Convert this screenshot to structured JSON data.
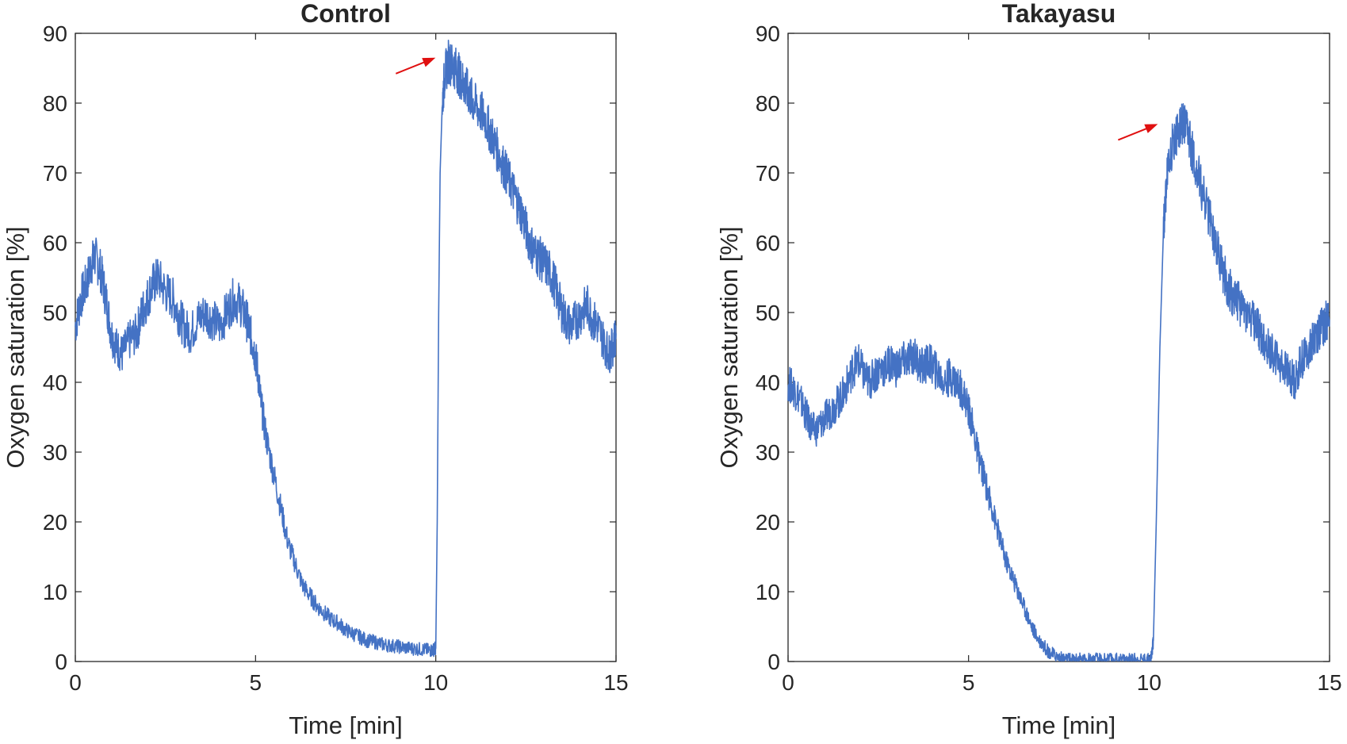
{
  "colors": {
    "line": "#4472c4",
    "arrow": "#e01010",
    "axis": "#262626",
    "background": "#ffffff"
  },
  "chart_data": [
    {
      "type": "line",
      "title": "Control",
      "xlabel": "Time [min]",
      "ylabel": "Oxygen saturation [%]",
      "xlim": [
        0,
        15
      ],
      "ylim": [
        0,
        90
      ],
      "xticks": [
        "0",
        "5",
        "10",
        "15"
      ],
      "yticks": [
        "0",
        "10",
        "20",
        "30",
        "40",
        "50",
        "60",
        "70",
        "80",
        "90"
      ],
      "grid": false,
      "annotations": [
        {
          "type": "arrow",
          "points_to": [
            10.3,
            86.5
          ]
        }
      ],
      "series": [
        {
          "x": [
            0,
            0.15,
            0.3,
            0.45,
            0.55,
            0.7,
            0.85,
            1.0,
            1.15,
            1.3,
            1.5,
            1.7,
            1.85,
            2.0,
            2.15,
            2.3,
            2.5,
            2.7,
            2.85,
            3.0,
            3.2,
            3.4,
            3.6,
            3.8,
            4.0,
            4.2,
            4.4,
            4.6,
            4.75,
            4.85,
            4.95,
            5.05,
            5.15,
            5.3,
            5.5,
            5.7,
            5.9,
            6.1,
            6.3,
            6.5,
            6.7,
            6.9,
            7.1,
            7.3,
            7.5,
            7.7,
            7.9,
            8.1,
            8.3,
            8.5,
            8.7,
            8.9,
            9.1,
            9.3,
            9.5,
            9.7,
            9.85,
            9.95,
            10.0,
            10.04,
            10.08,
            10.12,
            10.18,
            10.25,
            10.35,
            10.45,
            10.55,
            10.65,
            10.75,
            10.85,
            10.95,
            11.05,
            11.2,
            11.35,
            11.5,
            11.65,
            11.8,
            11.95,
            12.1,
            12.25,
            12.4,
            12.55,
            12.7,
            12.85,
            13.0,
            13.15,
            13.3,
            13.45,
            13.6,
            13.75,
            13.9,
            14.05,
            14.2,
            14.35,
            14.5,
            14.65,
            14.8,
            14.9,
            15.0
          ],
          "y": [
            48,
            52,
            54,
            57,
            58,
            56,
            52,
            47,
            45,
            44,
            46,
            47,
            50,
            52,
            54,
            55,
            53,
            52,
            50,
            48,
            47,
            49,
            50,
            49,
            48,
            50,
            52,
            51,
            49,
            47,
            45,
            42,
            37,
            32,
            27,
            22,
            17,
            14,
            11,
            9.5,
            8,
            7,
            6,
            5.5,
            4.5,
            4,
            3.5,
            3,
            2.8,
            2.5,
            2.3,
            2.2,
            2,
            1.9,
            1.8,
            1.7,
            1.6,
            1.7,
            2,
            20,
            50,
            70,
            80,
            84,
            86,
            85.5,
            85,
            84,
            83,
            82,
            81,
            80,
            79,
            78,
            76,
            74,
            72,
            70,
            68,
            66,
            64,
            61,
            59,
            58,
            57,
            56,
            54,
            51,
            49,
            48,
            49,
            50,
            51,
            49,
            48,
            46,
            44,
            45,
            47
          ]
        }
      ]
    },
    {
      "type": "line",
      "title": "Takayasu",
      "xlabel": "Time [min]",
      "ylabel": "Oxygen saturation [%]",
      "xlim": [
        0,
        15
      ],
      "ylim": [
        0,
        90
      ],
      "xticks": [
        "0",
        "5",
        "10",
        "15"
      ],
      "yticks": [
        "0",
        "10",
        "20",
        "30",
        "40",
        "50",
        "60",
        "70",
        "80",
        "90"
      ],
      "grid": false,
      "annotations": [
        {
          "type": "arrow",
          "points_to": [
            10.55,
            77
          ]
        }
      ],
      "series": [
        {
          "x": [
            0,
            0.15,
            0.3,
            0.45,
            0.6,
            0.75,
            0.9,
            1.05,
            1.2,
            1.35,
            1.5,
            1.65,
            1.8,
            1.95,
            2.1,
            2.25,
            2.4,
            2.55,
            2.7,
            2.85,
            3.0,
            3.15,
            3.3,
            3.45,
            3.6,
            3.75,
            3.9,
            4.05,
            4.2,
            4.35,
            4.5,
            4.65,
            4.8,
            4.95,
            5.1,
            5.25,
            5.4,
            5.55,
            5.7,
            5.85,
            6.0,
            6.15,
            6.3,
            6.45,
            6.6,
            6.75,
            6.9,
            7.05,
            7.2,
            7.35,
            7.5,
            7.65,
            7.8,
            7.95,
            8.1,
            8.25,
            8.4,
            8.6,
            8.8,
            9.0,
            9.2,
            9.4,
            9.6,
            9.8,
            9.95,
            10.05,
            10.12,
            10.2,
            10.3,
            10.4,
            10.5,
            10.6,
            10.7,
            10.8,
            10.9,
            11.0,
            11.1,
            11.2,
            11.35,
            11.5,
            11.65,
            11.8,
            11.95,
            12.1,
            12.25,
            12.4,
            12.55,
            12.7,
            12.85,
            13.0,
            13.15,
            13.3,
            13.45,
            13.6,
            13.75,
            13.9,
            14.05,
            14.2,
            14.35,
            14.5,
            14.65,
            14.8,
            14.9,
            15.0
          ],
          "y": [
            40,
            39,
            38,
            36,
            34,
            33,
            34,
            35,
            36,
            37,
            38,
            40,
            42,
            43,
            41,
            40,
            41,
            42,
            42,
            43,
            42,
            43,
            43,
            44,
            43,
            42,
            43,
            42,
            41,
            40,
            41,
            40,
            39,
            37,
            34,
            30,
            27,
            24,
            21,
            18,
            15,
            13,
            11,
            9,
            7,
            5,
            3.5,
            2.5,
            1.5,
            1,
            0.6,
            0.4,
            0.3,
            0.3,
            0.3,
            0.3,
            0.3,
            0.3,
            0.3,
            0.3,
            0.3,
            0.3,
            0.3,
            0.3,
            0.3,
            0.3,
            3,
            20,
            45,
            62,
            70,
            73,
            75,
            76,
            77,
            76.5,
            75,
            73,
            70,
            67,
            64,
            61,
            58,
            55,
            53,
            52,
            51,
            50,
            49,
            48,
            46,
            45,
            44,
            43,
            42,
            41,
            40,
            43,
            44,
            46,
            47,
            48,
            49,
            49
          ]
        }
      ]
    }
  ]
}
